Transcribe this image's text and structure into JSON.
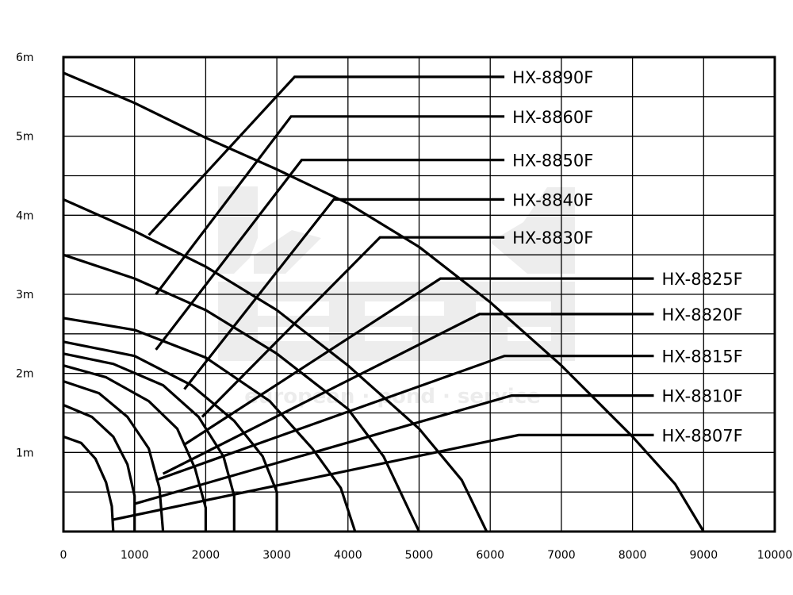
{
  "chart_data": {
    "type": "line",
    "title": "",
    "xlabel": "",
    "ylabel": "",
    "xlim": [
      0,
      10000
    ],
    "ylim": [
      0,
      6
    ],
    "x_ticks": [
      "0",
      "1000",
      "2000",
      "3000",
      "4000",
      "5000",
      "6000",
      "7000",
      "8000",
      "9000",
      "10000"
    ],
    "y_ticks": [
      {
        "value": 1,
        "label": "1m"
      },
      {
        "value": 2,
        "label": "2m"
      },
      {
        "value": 3,
        "label": "3m"
      },
      {
        "value": 4,
        "label": "4m"
      },
      {
        "value": 5,
        "label": "5m"
      },
      {
        "value": 6,
        "label": "6m"
      }
    ],
    "grid": true,
    "series": [
      {
        "name": "HX-8807F",
        "points": [
          [
            0,
            1.2
          ],
          [
            250,
            1.12
          ],
          [
            450,
            0.92
          ],
          [
            600,
            0.62
          ],
          [
            680,
            0.32
          ],
          [
            700,
            0
          ]
        ],
        "leader": [
          [
            700,
            0.15
          ],
          [
            6400,
            1.22
          ],
          [
            8300,
            1.22
          ]
        ]
      },
      {
        "name": "HX-8810F",
        "points": [
          [
            0,
            1.6
          ],
          [
            400,
            1.45
          ],
          [
            700,
            1.2
          ],
          [
            900,
            0.85
          ],
          [
            1000,
            0.45
          ],
          [
            1000,
            0
          ]
        ],
        "leader": [
          [
            1000,
            0.35
          ],
          [
            6300,
            1.72
          ],
          [
            8300,
            1.72
          ]
        ]
      },
      {
        "name": "HX-8815F",
        "points": [
          [
            0,
            1.9
          ],
          [
            500,
            1.75
          ],
          [
            900,
            1.45
          ],
          [
            1200,
            1.05
          ],
          [
            1350,
            0.55
          ],
          [
            1400,
            0
          ]
        ],
        "leader": [
          [
            1300,
            0.65
          ],
          [
            6200,
            2.22
          ],
          [
            8300,
            2.22
          ]
        ]
      },
      {
        "name": "HX-8820F",
        "points": [
          [
            0,
            2.1
          ],
          [
            600,
            1.95
          ],
          [
            1200,
            1.65
          ],
          [
            1600,
            1.3
          ],
          [
            1850,
            0.8
          ],
          [
            2000,
            0.3
          ],
          [
            2000,
            0
          ]
        ],
        "leader": [
          [
            1400,
            0.73
          ],
          [
            5850,
            2.75
          ],
          [
            8300,
            2.75
          ]
        ]
      },
      {
        "name": "HX-8825F",
        "points": [
          [
            0,
            2.25
          ],
          [
            700,
            2.12
          ],
          [
            1400,
            1.85
          ],
          [
            1900,
            1.45
          ],
          [
            2250,
            0.95
          ],
          [
            2400,
            0.45
          ],
          [
            2400,
            0
          ]
        ],
        "leader": [
          [
            1700,
            1.1
          ],
          [
            5300,
            3.2
          ],
          [
            8300,
            3.2
          ]
        ]
      },
      {
        "name": "HX-8830F",
        "points": [
          [
            0,
            2.4
          ],
          [
            1000,
            2.22
          ],
          [
            1800,
            1.85
          ],
          [
            2400,
            1.4
          ],
          [
            2800,
            0.95
          ],
          [
            3000,
            0.5
          ],
          [
            3000,
            0
          ]
        ],
        "leader": [
          [
            1950,
            1.45
          ],
          [
            4450,
            3.72
          ],
          [
            6200,
            3.72
          ]
        ]
      },
      {
        "name": "HX-8840F",
        "points": [
          [
            0,
            2.7
          ],
          [
            1000,
            2.55
          ],
          [
            2000,
            2.2
          ],
          [
            2900,
            1.65
          ],
          [
            3500,
            1.05
          ],
          [
            3900,
            0.55
          ],
          [
            4100,
            0
          ]
        ],
        "leader": [
          [
            1700,
            1.8
          ],
          [
            3800,
            4.2
          ],
          [
            6200,
            4.2
          ]
        ]
      },
      {
        "name": "HX-8850F",
        "points": [
          [
            0,
            3.5
          ],
          [
            1000,
            3.2
          ],
          [
            2000,
            2.8
          ],
          [
            3000,
            2.25
          ],
          [
            4000,
            1.55
          ],
          [
            4500,
            0.95
          ],
          [
            5000,
            0
          ]
        ],
        "leader": [
          [
            1300,
            2.3
          ],
          [
            3350,
            4.7
          ],
          [
            6200,
            4.7
          ]
        ]
      },
      {
        "name": "HX-8860F",
        "points": [
          [
            0,
            4.2
          ],
          [
            1000,
            3.8
          ],
          [
            2000,
            3.35
          ],
          [
            3000,
            2.8
          ],
          [
            4000,
            2.1
          ],
          [
            5000,
            1.3
          ],
          [
            5600,
            0.65
          ],
          [
            5950,
            0
          ]
        ],
        "leader": [
          [
            1300,
            3.0
          ],
          [
            3200,
            5.25
          ],
          [
            6200,
            5.25
          ]
        ]
      },
      {
        "name": "HX-8890F",
        "points": [
          [
            0,
            5.8
          ],
          [
            1000,
            5.42
          ],
          [
            2000,
            4.98
          ],
          [
            3000,
            4.58
          ],
          [
            4000,
            4.15
          ],
          [
            5000,
            3.6
          ],
          [
            6000,
            2.9
          ],
          [
            7000,
            2.1
          ],
          [
            8000,
            1.2
          ],
          [
            8600,
            0.6
          ],
          [
            9000,
            0
          ]
        ],
        "leader": [
          [
            1200,
            3.75
          ],
          [
            3250,
            5.75
          ],
          [
            6200,
            5.75
          ]
        ]
      }
    ],
    "watermark": {
      "text": "european · pond · service",
      "colors": {
        "main": "#ececec"
      }
    }
  }
}
